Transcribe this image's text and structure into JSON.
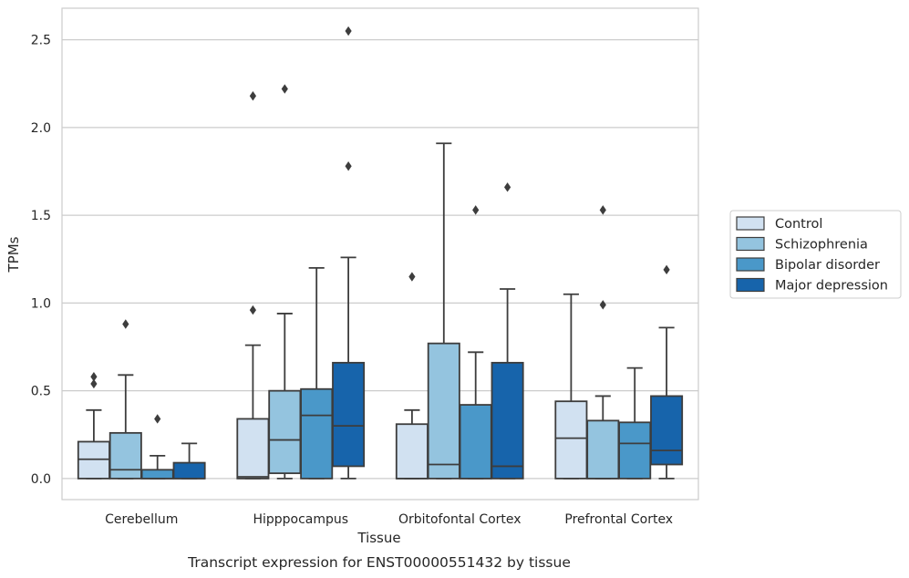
{
  "chart_data": {
    "type": "box",
    "caption": "Transcript expression for ENST00000551432 by tissue",
    "xlabel": "Tissue",
    "ylabel": "TPMs",
    "ylim": [
      -0.12,
      2.68
    ],
    "yticks": [
      0.0,
      0.5,
      1.0,
      1.5,
      2.0,
      2.5
    ],
    "ytick_labels": [
      "0.0",
      "0.5",
      "1.0",
      "1.5",
      "2.0",
      "2.5"
    ],
    "grid": "horizontal",
    "legend_position": "right",
    "categories": [
      "Cerebellum",
      "Hipppocampus",
      "Orbitofontal Cortex",
      "Prefrontal Cortex"
    ],
    "series": [
      {
        "name": "Control",
        "color": "#d1e1f1",
        "boxes": [
          {
            "low": 0.0,
            "q1": 0.0,
            "median": 0.11,
            "q3": 0.21,
            "high": 0.39,
            "outliers": [
              0.54,
              0.58
            ]
          },
          {
            "low": 0.0,
            "q1": 0.0,
            "median": 0.01,
            "q3": 0.34,
            "high": 0.76,
            "outliers": [
              0.96,
              2.18
            ]
          },
          {
            "low": 0.0,
            "q1": 0.0,
            "median": 0.0,
            "q3": 0.31,
            "high": 0.39,
            "outliers": [
              1.15
            ]
          },
          {
            "low": 0.0,
            "q1": 0.0,
            "median": 0.23,
            "q3": 0.44,
            "high": 1.05,
            "outliers": []
          }
        ]
      },
      {
        "name": "Schizophrenia",
        "color": "#94c4df",
        "boxes": [
          {
            "low": 0.0,
            "q1": 0.0,
            "median": 0.05,
            "q3": 0.26,
            "high": 0.59,
            "outliers": [
              0.88
            ]
          },
          {
            "low": 0.0,
            "q1": 0.03,
            "median": 0.22,
            "q3": 0.5,
            "high": 0.94,
            "outliers": [
              2.22
            ]
          },
          {
            "low": 0.0,
            "q1": 0.0,
            "median": 0.08,
            "q3": 0.77,
            "high": 1.91,
            "outliers": []
          },
          {
            "low": 0.0,
            "q1": 0.0,
            "median": 0.0,
            "q3": 0.33,
            "high": 0.47,
            "outliers": [
              0.99,
              1.53
            ]
          }
        ]
      },
      {
        "name": "Bipolar disorder",
        "color": "#4a98c9",
        "boxes": [
          {
            "low": 0.0,
            "q1": 0.0,
            "median": 0.0,
            "q3": 0.05,
            "high": 0.13,
            "outliers": [
              0.34
            ]
          },
          {
            "low": 0.0,
            "q1": 0.0,
            "median": 0.36,
            "q3": 0.51,
            "high": 1.2,
            "outliers": []
          },
          {
            "low": 0.0,
            "q1": 0.0,
            "median": 0.0,
            "q3": 0.42,
            "high": 0.72,
            "outliers": [
              1.53
            ]
          },
          {
            "low": 0.0,
            "q1": 0.0,
            "median": 0.2,
            "q3": 0.32,
            "high": 0.63,
            "outliers": []
          }
        ]
      },
      {
        "name": "Major depression",
        "color": "#1764ab",
        "boxes": [
          {
            "low": 0.0,
            "q1": 0.0,
            "median": 0.0,
            "q3": 0.09,
            "high": 0.2,
            "outliers": []
          },
          {
            "low": 0.0,
            "q1": 0.07,
            "median": 0.3,
            "q3": 0.66,
            "high": 1.26,
            "outliers": [
              1.78,
              2.55
            ]
          },
          {
            "low": 0.0,
            "q1": 0.0,
            "median": 0.07,
            "q3": 0.66,
            "high": 1.08,
            "outliers": [
              1.66
            ]
          },
          {
            "low": 0.0,
            "q1": 0.08,
            "median": 0.16,
            "q3": 0.47,
            "high": 0.86,
            "outliers": [
              1.19
            ]
          }
        ]
      }
    ]
  }
}
